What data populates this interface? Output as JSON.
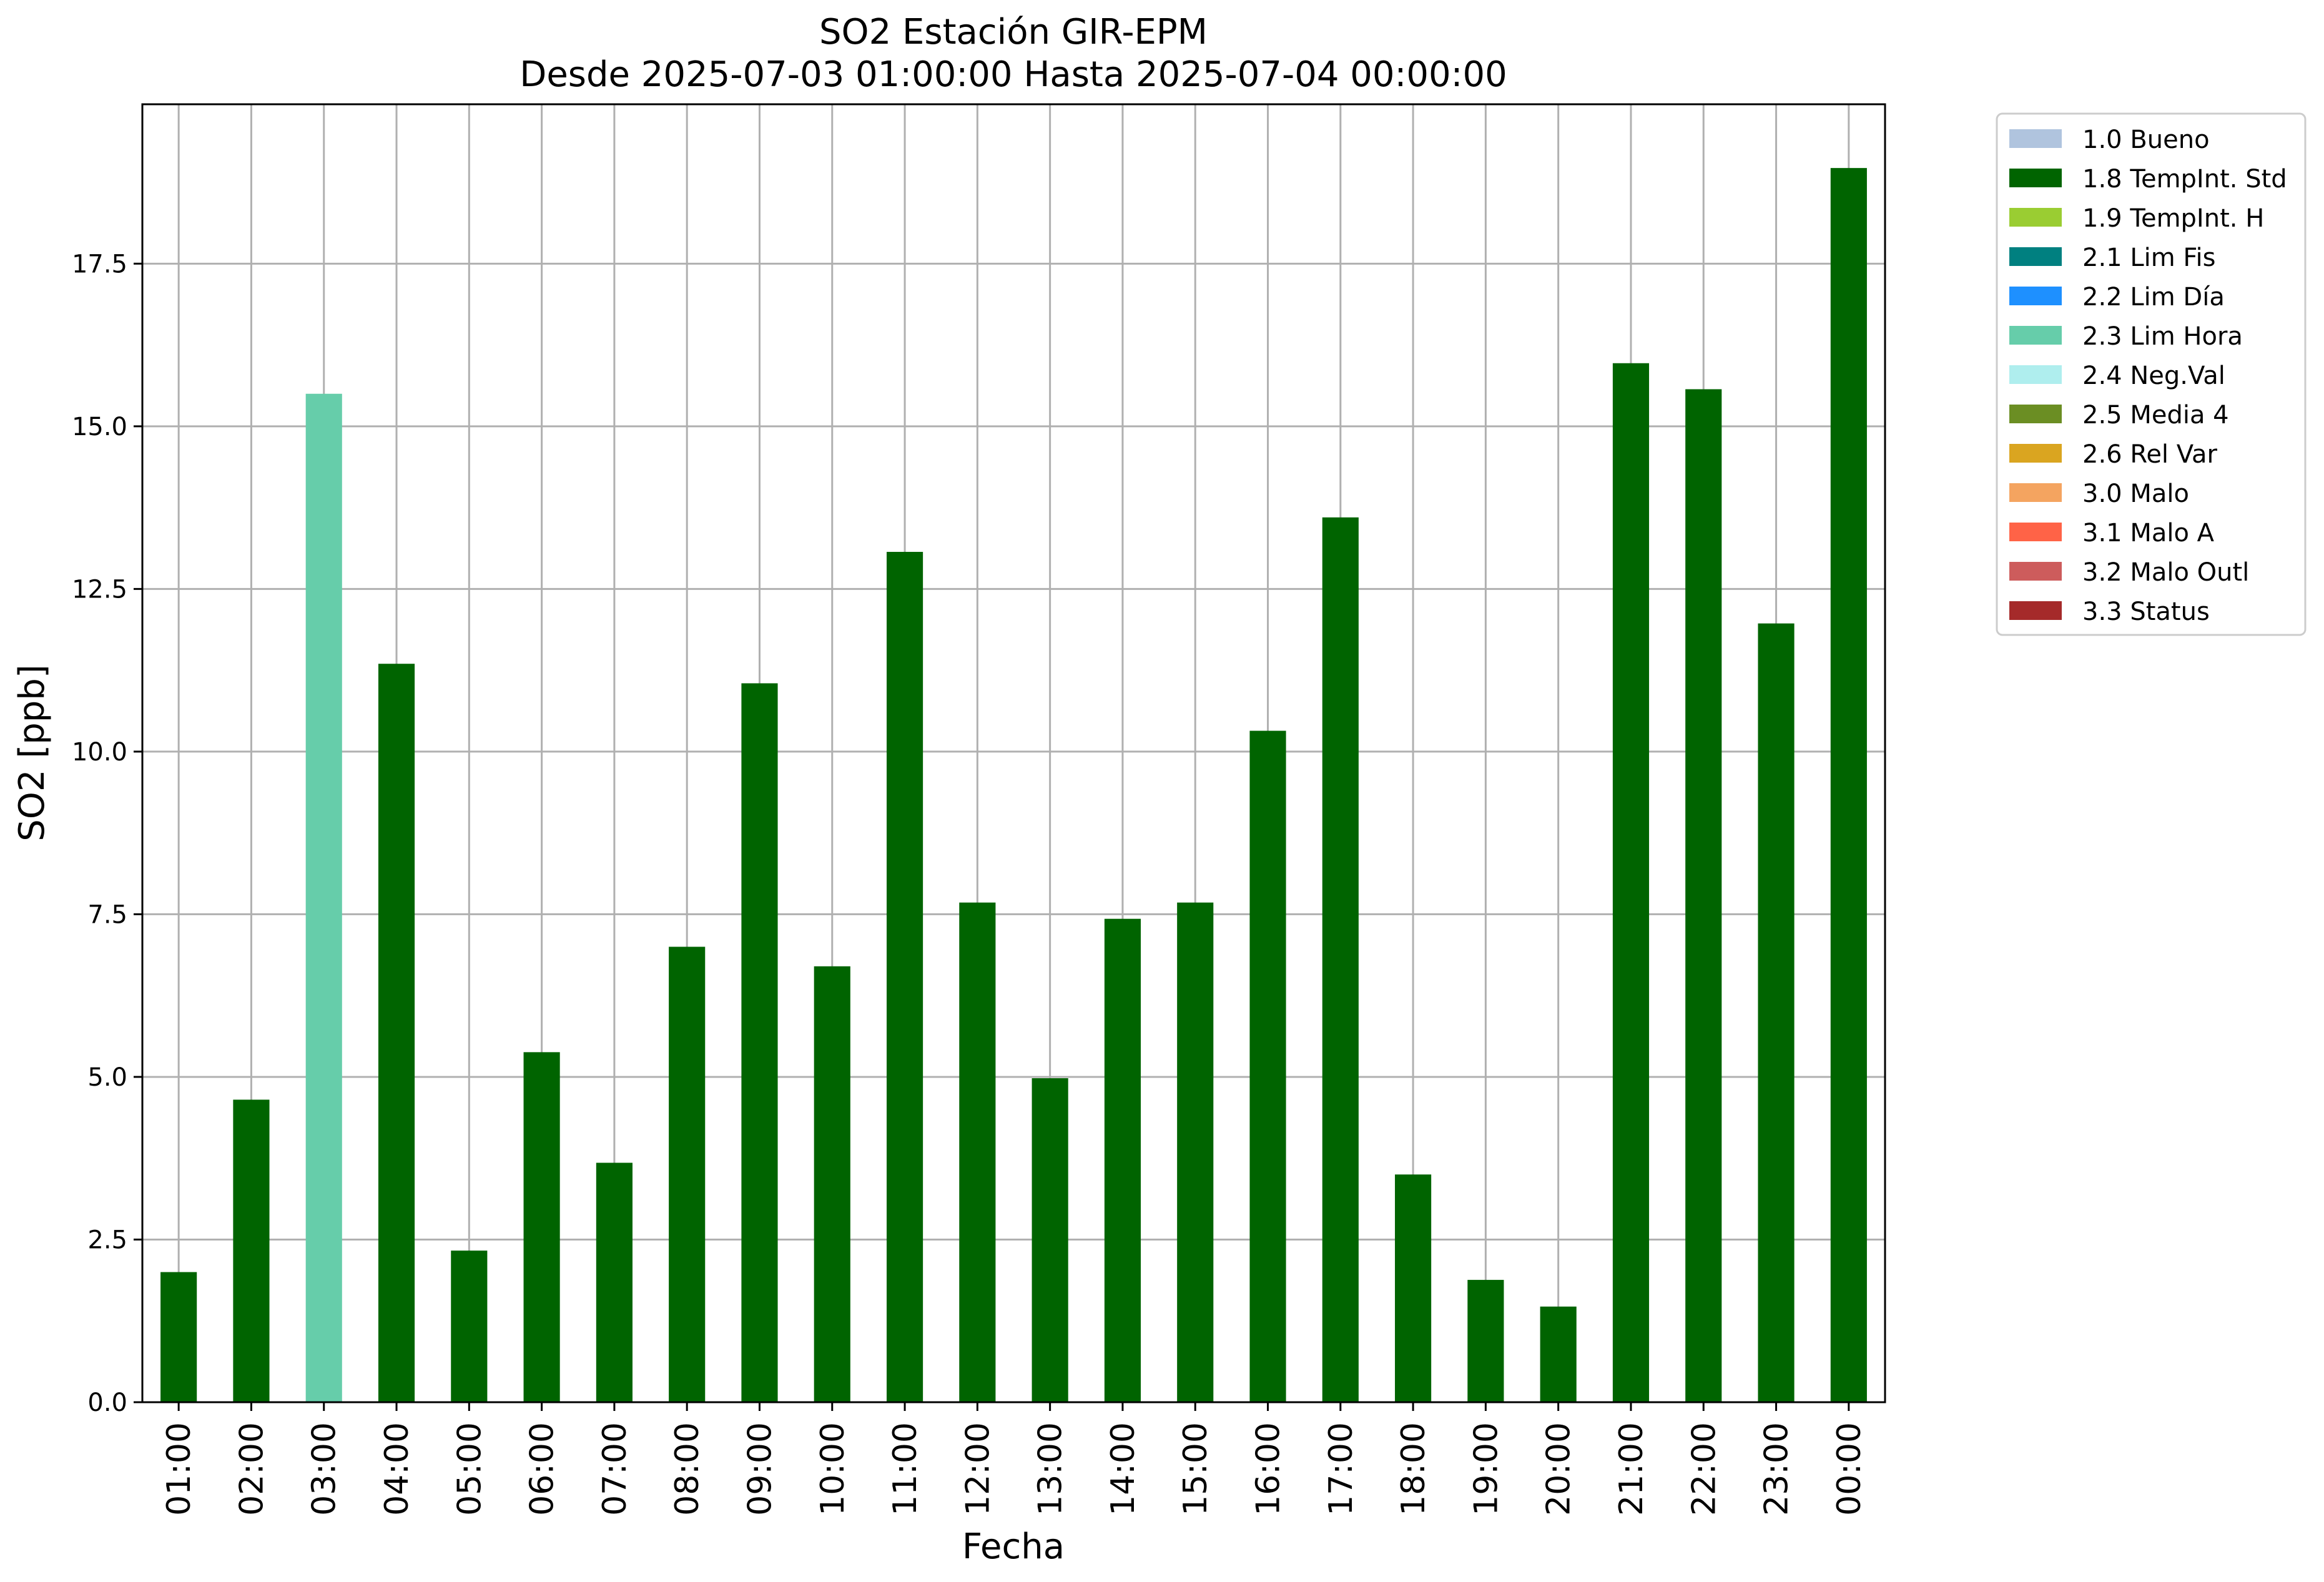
{
  "chart_data": {
    "type": "bar",
    "title": "SO2 Estación GIR-EPM",
    "subtitle": "Desde 2025-07-03 01:00:00 Hasta 2025-07-04 00:00:00",
    "xlabel": "Fecha",
    "ylabel": "SO2 [ppb]",
    "categories": [
      "01:00",
      "02:00",
      "03:00",
      "04:00",
      "05:00",
      "06:00",
      "07:00",
      "08:00",
      "09:00",
      "10:00",
      "11:00",
      "12:00",
      "13:00",
      "14:00",
      "15:00",
      "16:00",
      "17:00",
      "18:00",
      "19:00",
      "20:00",
      "21:00",
      "22:00",
      "23:00",
      "00:00"
    ],
    "values": [
      2.0,
      4.65,
      15.5,
      11.35,
      2.33,
      5.38,
      3.68,
      7.0,
      11.05,
      6.7,
      13.07,
      7.68,
      4.98,
      7.43,
      7.68,
      10.32,
      13.6,
      3.5,
      1.88,
      1.47,
      15.97,
      15.57,
      11.97,
      18.97
    ],
    "flags": [
      "1.8 TempInt. Std",
      "1.8 TempInt. Std",
      "2.3 Lim Hora",
      "1.8 TempInt. Std",
      "1.8 TempInt. Std",
      "1.8 TempInt. Std",
      "1.8 TempInt. Std",
      "1.8 TempInt. Std",
      "1.8 TempInt. Std",
      "1.8 TempInt. Std",
      "1.8 TempInt. Std",
      "1.8 TempInt. Std",
      "1.8 TempInt. Std",
      "1.8 TempInt. Std",
      "1.8 TempInt. Std",
      "1.8 TempInt. Std",
      "1.8 TempInt. Std",
      "1.8 TempInt. Std",
      "1.8 TempInt. Std",
      "1.8 TempInt. Std",
      "1.8 TempInt. Std",
      "1.8 TempInt. Std",
      "1.8 TempInt. Std",
      "1.8 TempInt. Std"
    ],
    "ylim": [
      0,
      19.95
    ],
    "yticks": [
      0.0,
      2.5,
      5.0,
      7.5,
      10.0,
      12.5,
      15.0,
      17.5
    ],
    "ytick_labels": [
      "0.0",
      "2.5",
      "5.0",
      "7.5",
      "10.0",
      "12.5",
      "15.0",
      "17.5"
    ],
    "grid": true,
    "legend_position": "outside-top-right",
    "legend": [
      {
        "label": "1.0 Bueno",
        "color": "#b0c4de"
      },
      {
        "label": "1.8 TempInt. Std",
        "color": "#006400"
      },
      {
        "label": "1.9 TempInt. H",
        "color": "#9acd32"
      },
      {
        "label": "2.1 Lim Fis",
        "color": "#008080"
      },
      {
        "label": "2.2 Lim Día",
        "color": "#1e90ff"
      },
      {
        "label": "2.3 Lim Hora",
        "color": "#66cdaa"
      },
      {
        "label": "2.4 Neg.Val",
        "color": "#afeeee"
      },
      {
        "label": "2.5 Media 4",
        "color": "#6b8e23"
      },
      {
        "label": "2.6 Rel Var",
        "color": "#daa520"
      },
      {
        "label": "3.0 Malo",
        "color": "#f4a460"
      },
      {
        "label": "3.1 Malo A",
        "color": "#ff6347"
      },
      {
        "label": "3.2 Malo Outl",
        "color": "#cd5c5c"
      },
      {
        "label": "3.3 Status",
        "color": "#a52a2a"
      }
    ]
  }
}
